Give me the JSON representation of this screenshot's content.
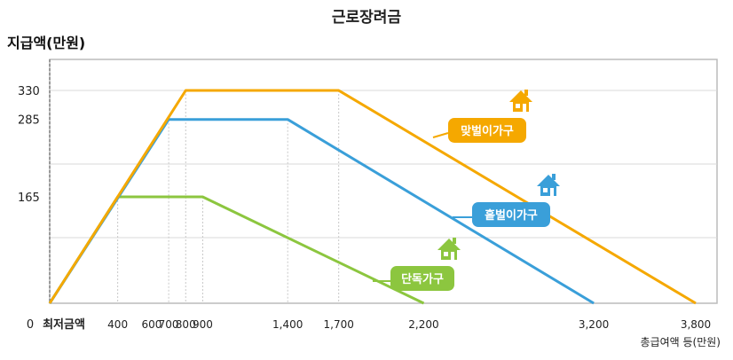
{
  "chart_data": {
    "type": "line",
    "title": "근로장려금",
    "ylabel": "지급액(만원)",
    "xlabel": "총급여액 등(만원)",
    "x_origin_label": "0",
    "x_min_label": "최저금액",
    "xlim": [
      0,
      3800
    ],
    "ylim": [
      0,
      330
    ],
    "x_ticks": [
      {
        "value": 400,
        "label": "400"
      },
      {
        "value": 600,
        "label": "600"
      },
      {
        "value": 700,
        "label": "700"
      },
      {
        "value": 800,
        "label": "800"
      },
      {
        "value": 900,
        "label": "900"
      },
      {
        "value": 1400,
        "label": "1,400"
      },
      {
        "value": 1700,
        "label": "1,700"
      },
      {
        "value": 2200,
        "label": "2,200"
      },
      {
        "value": 3200,
        "label": "3,200"
      },
      {
        "value": 3800,
        "label": "3,800"
      }
    ],
    "y_ticks": [
      {
        "value": 165,
        "label": "165"
      },
      {
        "value": 285,
        "label": "285"
      },
      {
        "value": 330,
        "label": "330"
      }
    ],
    "grid": true,
    "series": [
      {
        "name": "단독가구",
        "color": "#8cc63f",
        "points": [
          [
            0,
            0
          ],
          [
            400,
            165
          ],
          [
            900,
            165
          ],
          [
            2200,
            0
          ]
        ]
      },
      {
        "name": "홑벌이가구",
        "color": "#3a9fd9",
        "points": [
          [
            0,
            0
          ],
          [
            700,
            285
          ],
          [
            1400,
            285
          ],
          [
            3200,
            0
          ]
        ]
      },
      {
        "name": "맞벌이가구",
        "color": "#f5a800",
        "points": [
          [
            0,
            0
          ],
          [
            800,
            330
          ],
          [
            1700,
            330
          ],
          [
            3800,
            0
          ]
        ]
      }
    ],
    "icons": [
      "house-icon",
      "house-icon",
      "house-icon"
    ]
  }
}
